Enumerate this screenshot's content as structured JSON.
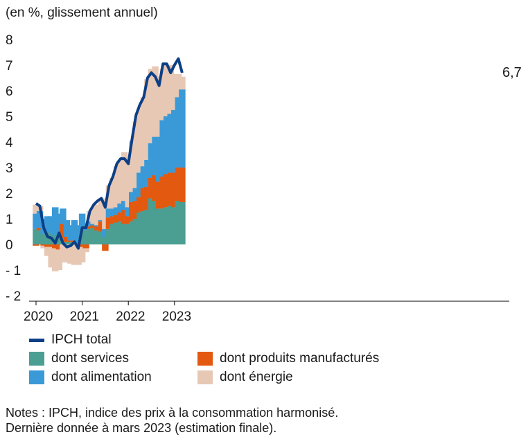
{
  "chart_data": {
    "type": "bar",
    "subtitle": "(en %, glissement annuel)",
    "ylim": [
      -2,
      8
    ],
    "y_ticks": [
      "8",
      "7",
      "6",
      "5",
      "4",
      "3",
      "2",
      "1",
      "0",
      "- 1",
      "- 2"
    ],
    "x_tick_labels": [
      "2020",
      "2021",
      "2022",
      "2023"
    ],
    "months": [
      "2020-01",
      "2020-02",
      "2020-03",
      "2020-04",
      "2020-05",
      "2020-06",
      "2020-07",
      "2020-08",
      "2020-09",
      "2020-10",
      "2020-11",
      "2020-12",
      "2021-01",
      "2021-02",
      "2021-03",
      "2021-04",
      "2021-05",
      "2021-06",
      "2021-07",
      "2021-08",
      "2021-09",
      "2021-10",
      "2021-11",
      "2021-12",
      "2022-01",
      "2022-02",
      "2022-03",
      "2022-04",
      "2022-05",
      "2022-06",
      "2022-07",
      "2022-08",
      "2022-09",
      "2022-10",
      "2022-11",
      "2022-12",
      "2023-01",
      "2023-02",
      "2023-03"
    ],
    "series": [
      {
        "name": "dont services",
        "color": "#4a9e92",
        "values": [
          0.6,
          0.55,
          0.4,
          0.5,
          0.45,
          0.35,
          0.4,
          0.25,
          0.1,
          0.1,
          0.1,
          0.05,
          0.55,
          0.55,
          0.6,
          0.65,
          0.55,
          0.5,
          0.3,
          0.6,
          0.8,
          0.85,
          0.9,
          0.8,
          0.8,
          0.9,
          1.0,
          1.25,
          1.3,
          1.35,
          1.8,
          1.7,
          1.4,
          1.4,
          1.45,
          1.5,
          1.45,
          1.7,
          1.65
        ]
      },
      {
        "name": "dont produits manufacturés",
        "color": "#e3590f",
        "values": [
          -0.05,
          0.1,
          -0.05,
          -0.1,
          -0.1,
          -0.15,
          -0.2,
          0.55,
          0.2,
          0.05,
          0.05,
          -0.05,
          -0.1,
          -0.15,
          0.1,
          0.1,
          0.15,
          0.4,
          -0.25,
          0.45,
          0.3,
          0.3,
          0.35,
          0.55,
          0.3,
          0.75,
          0.7,
          0.6,
          0.9,
          0.9,
          0.8,
          1.0,
          1.05,
          1.25,
          1.3,
          1.3,
          1.35,
          1.3,
          1.35
        ]
      },
      {
        "name": "dont alimentation",
        "color": "#3a9ad8",
        "values": [
          0.6,
          0.65,
          0.6,
          0.6,
          0.65,
          1.1,
          0.8,
          0.6,
          0.65,
          0.6,
          0.8,
          0.7,
          0.65,
          0.25,
          0.2,
          0.05,
          0.05,
          0.05,
          0.3,
          0.35,
          0.3,
          0.3,
          0.35,
          0.35,
          0.35,
          0.4,
          0.5,
          0.95,
          0.85,
          1.05,
          1.35,
          1.5,
          1.75,
          2.2,
          2.25,
          2.3,
          2.45,
          2.75,
          3.05
        ]
      },
      {
        "name": "dont énergie",
        "color": "#e7c8b4",
        "values": [
          0.35,
          0.2,
          -0.1,
          -0.35,
          -0.8,
          -0.9,
          -0.8,
          -0.7,
          -0.7,
          -0.75,
          -0.8,
          -0.75,
          -0.6,
          -0.15,
          0.4,
          0.65,
          0.8,
          0.85,
          0.9,
          0.9,
          1.2,
          1.6,
          1.7,
          1.9,
          1.65,
          2.0,
          2.6,
          2.5,
          2.7,
          3.15,
          2.9,
          2.75,
          2.35,
          2.0,
          2.0,
          1.9,
          1.4,
          0.9,
          0.5
        ]
      },
      {
        "name": "IPCH total",
        "color": "#0d3f86",
        "type": "line",
        "values": [
          1.6,
          1.5,
          0.65,
          0.3,
          0.25,
          0.05,
          0.45,
          0.05,
          -0.1,
          -0.05,
          0.1,
          -0.15,
          0.65,
          0.65,
          1.3,
          1.55,
          1.7,
          1.8,
          1.45,
          2.3,
          2.65,
          3.15,
          3.35,
          3.35,
          3.15,
          4.15,
          5.05,
          5.45,
          5.75,
          6.5,
          6.7,
          6.55,
          6.2,
          7.05,
          7.05,
          6.7,
          7.0,
          7.25,
          6.7
        ]
      }
    ],
    "end_label": "6,7",
    "legend": [
      "IPCH total",
      "dont services",
      "dont produits manufacturés",
      "dont alimentation",
      "dont énergie"
    ],
    "legend_position": "bottom",
    "grid": false
  },
  "notes": [
    "Notes : IPCH, indice des prix à la consommation harmonisé.",
    "Dernière donnée à mars 2023 (estimation finale)."
  ]
}
